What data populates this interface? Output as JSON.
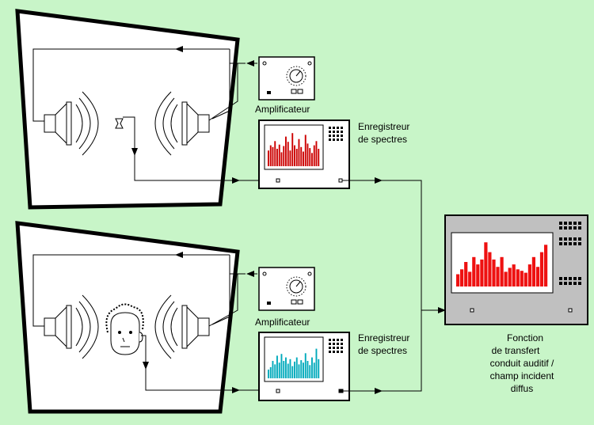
{
  "labels": {
    "amp_top": "Amplificateur",
    "amp_bottom": "Amplificateur",
    "spec_top_l1": "Enregistreur",
    "spec_top_l2": "de spectres",
    "spec_bottom_l1": "Enregistreur",
    "spec_bottom_l2": "de spectres",
    "result_l1": "Fonction",
    "result_l2": "de transfert",
    "result_l3": "conduit auditif /",
    "result_l4": "champ incident",
    "result_l5": "diffus"
  },
  "colors": {
    "background": "#c8f5c8",
    "bars_top": "#cc0000",
    "bars_bottom": "#00aabb",
    "bars_result": "#ee1111",
    "screen": "#ffffff",
    "panel": "#ffffff",
    "analyzer_body": "#c0c0c0"
  },
  "spectra": {
    "top": [
      0.45,
      0.6,
      0.55,
      0.72,
      0.5,
      0.62,
      0.4,
      0.58,
      0.85,
      0.7,
      0.45,
      0.95,
      0.6,
      0.5,
      0.78,
      0.55,
      0.42,
      0.9,
      0.65,
      0.52,
      0.38,
      0.6,
      0.72,
      0.5
    ],
    "bottom": [
      0.25,
      0.32,
      0.5,
      0.4,
      0.65,
      0.45,
      0.7,
      0.5,
      0.6,
      0.42,
      0.55,
      0.35,
      0.48,
      0.6,
      0.4,
      0.52,
      0.45,
      0.72,
      0.5,
      0.38,
      0.6,
      0.45,
      0.85,
      0.55
    ],
    "result": [
      0.25,
      0.35,
      0.5,
      0.3,
      0.6,
      0.45,
      0.55,
      0.9,
      0.7,
      0.55,
      0.4,
      0.6,
      0.3,
      0.38,
      0.45,
      0.35,
      0.32,
      0.28,
      0.45,
      0.6,
      0.4,
      0.7,
      0.85
    ]
  }
}
